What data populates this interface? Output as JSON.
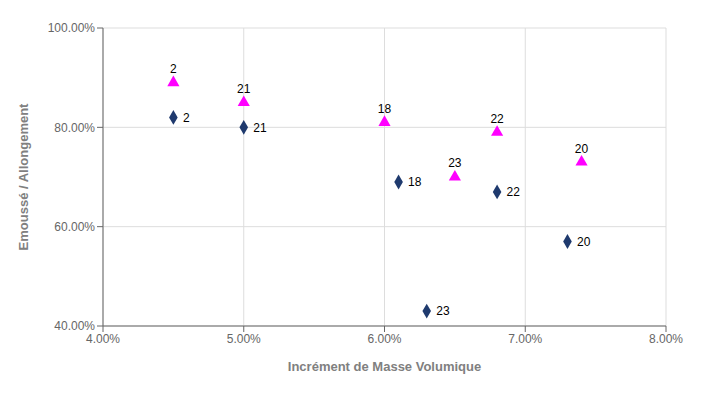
{
  "chart_data": {
    "type": "scatter",
    "xlabel": "Incrément de Masse Volumique",
    "ylabel": "Emoussé / Allongement",
    "xlim": [
      0.04,
      0.08
    ],
    "ylim": [
      0.4,
      1.0
    ],
    "xticks": [
      {
        "value": 0.04,
        "label": "4.00%"
      },
      {
        "value": 0.05,
        "label": "5.00%"
      },
      {
        "value": 0.06,
        "label": "6.00%"
      },
      {
        "value": 0.07,
        "label": "7.00%"
      },
      {
        "value": 0.08,
        "label": "8.00%"
      }
    ],
    "yticks": [
      {
        "value": 0.4,
        "label": "40.00%"
      },
      {
        "value": 0.6,
        "label": "60.00%"
      },
      {
        "value": 0.8,
        "label": "80.00%"
      },
      {
        "value": 1.0,
        "label": "100.00%"
      }
    ],
    "grid": true,
    "series": [
      {
        "color": "#1F3A6E",
        "marker": "diamond",
        "x": [
          0.045,
          0.05,
          0.061,
          0.063,
          0.068,
          0.073
        ],
        "values": [
          0.82,
          0.8,
          0.69,
          0.43,
          0.67,
          0.57
        ],
        "labels": [
          "2",
          "21",
          "18",
          "23",
          "22",
          "20"
        ]
      },
      {
        "color": "#FF00FF",
        "marker": "triangle",
        "x": [
          0.045,
          0.05,
          0.06,
          0.065,
          0.068,
          0.074
        ],
        "values": [
          0.89,
          0.85,
          0.81,
          0.7,
          0.79,
          0.73
        ],
        "labels": [
          "2",
          "21",
          "18",
          "23",
          "22",
          "20"
        ]
      }
    ]
  }
}
